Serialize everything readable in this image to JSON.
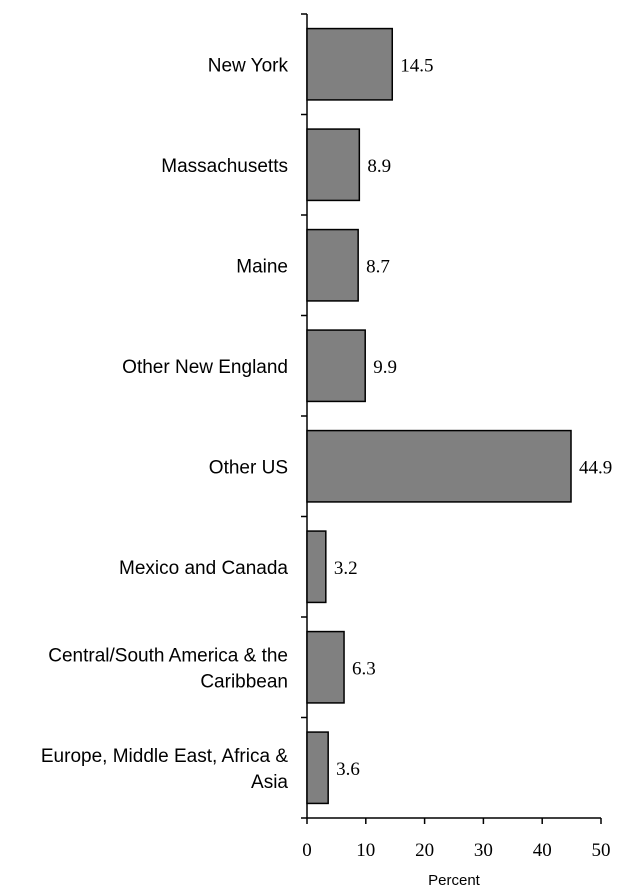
{
  "chart_data": {
    "type": "bar",
    "orientation": "horizontal",
    "categories": [
      "New York",
      "Massachusetts",
      "Maine",
      "Other New England",
      "Other US",
      "Mexico and Canada",
      "Central/South America & the\nCaribbean",
      "Europe, Middle East, Africa &\nAsia"
    ],
    "values": [
      14.5,
      8.9,
      8.7,
      9.9,
      44.9,
      3.2,
      6.3,
      3.6
    ],
    "color": "#808080",
    "x_label": "Percent",
    "xlim": [
      0,
      50
    ],
    "xticks": [
      0,
      10,
      20,
      30,
      40,
      50
    ]
  }
}
